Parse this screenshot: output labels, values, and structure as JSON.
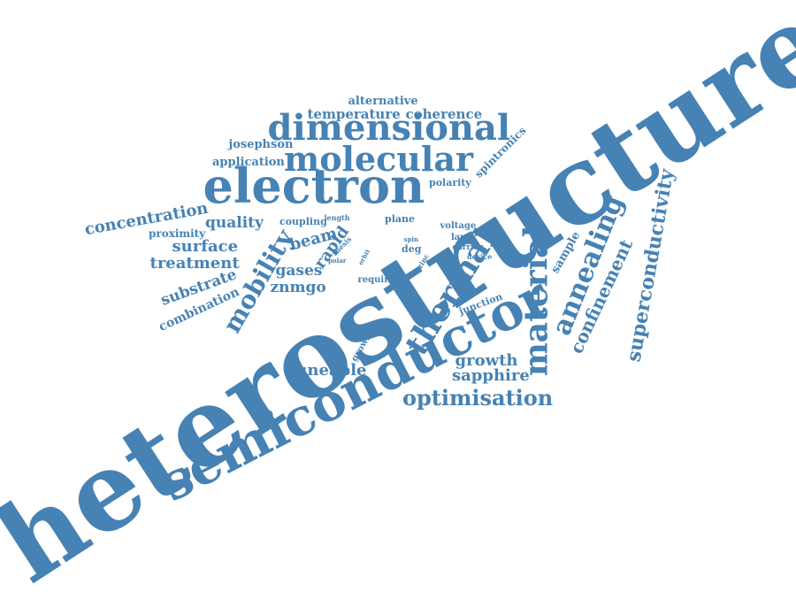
{
  "color": "#4682b4",
  "words": [
    {
      "text": "heterostructure",
      "rotation": -33
    },
    {
      "text": "semiconductor",
      "rotation": -27
    },
    {
      "text": "electron",
      "rotation": 0
    },
    {
      "text": "dimensional",
      "rotation": 0
    },
    {
      "text": "molecular",
      "rotation": 0
    },
    {
      "text": "thermal",
      "rotation": -58
    },
    {
      "text": "material",
      "rotation": -90
    },
    {
      "text": "annealing",
      "rotation": -68
    },
    {
      "text": "mobility",
      "rotation": -60
    },
    {
      "text": "optimisation",
      "rotation": 0
    },
    {
      "text": "superconductivity",
      "rotation": -80
    },
    {
      "text": "confinement",
      "rotation": -65
    },
    {
      "text": "concentration",
      "rotation": -10
    },
    {
      "text": "sapphire",
      "rotation": 0
    },
    {
      "text": "growth",
      "rotation": 0
    },
    {
      "text": "tuneable",
      "rotation": 0
    },
    {
      "text": "treatment",
      "rotation": 0
    },
    {
      "text": "surface",
      "rotation": 0
    },
    {
      "text": "substrate",
      "rotation": -20
    },
    {
      "text": "quality",
      "rotation": 0
    },
    {
      "text": "beam",
      "rotation": -15
    },
    {
      "text": "rapid",
      "rotation": -55
    },
    {
      "text": "gases",
      "rotation": 0
    },
    {
      "text": "znmgo",
      "rotation": 0
    },
    {
      "text": "combination",
      "rotation": -25
    },
    {
      "text": "temperature",
      "rotation": 0
    },
    {
      "text": "coherence",
      "rotation": 0
    },
    {
      "text": "alternative",
      "rotation": 0
    },
    {
      "text": "application",
      "rotation": 0
    },
    {
      "text": "josephson",
      "rotation": 0
    },
    {
      "text": "spintronics",
      "rotation": -45
    },
    {
      "text": "sample",
      "rotation": -60
    },
    {
      "text": "proximity",
      "rotation": 0
    },
    {
      "text": "polarity",
      "rotation": 0
    },
    {
      "text": "coupling",
      "rotation": 0
    },
    {
      "text": "plane",
      "rotation": 0
    },
    {
      "text": "voltage",
      "rotation": 0
    },
    {
      "text": "layer",
      "rotation": 0
    },
    {
      "text": "carrier",
      "rotation": 0
    },
    {
      "text": "device",
      "rotation": 0
    },
    {
      "text": "deg",
      "rotation": 0
    },
    {
      "text": "junction",
      "rotation": -20
    },
    {
      "text": "require",
      "rotation": 0
    },
    {
      "text": "grown",
      "rotation": -60
    },
    {
      "text": "length",
      "rotation": 0
    },
    {
      "text": "thesis",
      "rotation": -45
    },
    {
      "text": "orbit",
      "rotation": -60
    },
    {
      "text": "polar",
      "rotation": 0
    },
    {
      "text": "spin",
      "rotation": 0
    },
    {
      "text": "zinc",
      "rotation": -60
    }
  ]
}
